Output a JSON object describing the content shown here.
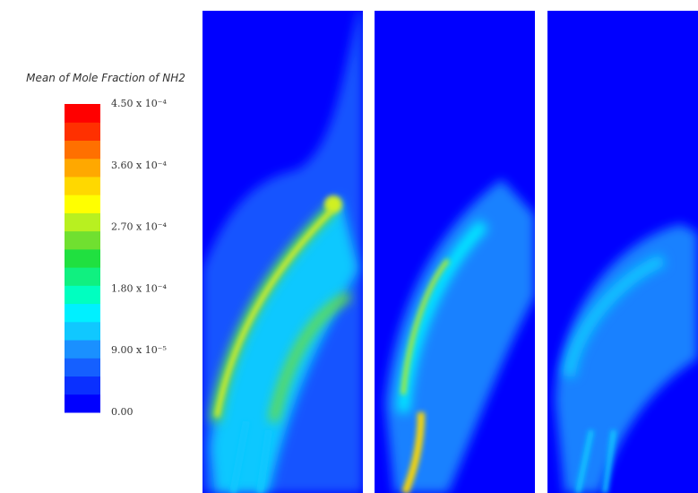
{
  "chart_data": {
    "type": "contour",
    "colorbar_title": "Mean of Mole Fraction of NH2",
    "clim": [
      0,
      0.00045
    ],
    "colormap": [
      "#0000ff",
      "#0a30ff",
      "#1560ff",
      "#1a90ff",
      "#10c8ff",
      "#00f0ff",
      "#00ffc0",
      "#10f080",
      "#20e040",
      "#70e030",
      "#b8f020",
      "#ffff00",
      "#ffd800",
      "#ffa800",
      "#ff7000",
      "#ff3000",
      "#ff0000"
    ],
    "colorbar_ticks": [
      {
        "value": 0.00045,
        "label": "4.50 x 10⁻⁴"
      },
      {
        "value": 0.00036,
        "label": "3.60 x 10⁻⁴"
      },
      {
        "value": 0.00027,
        "label": "2.70 x 10⁻⁴"
      },
      {
        "value": 0.00018,
        "label": "1.80 x 10⁻⁴"
      },
      {
        "value": 9e-05,
        "label": "9.00 x 10⁻⁵"
      },
      {
        "value": 0,
        "label": "0.00"
      }
    ]
  }
}
